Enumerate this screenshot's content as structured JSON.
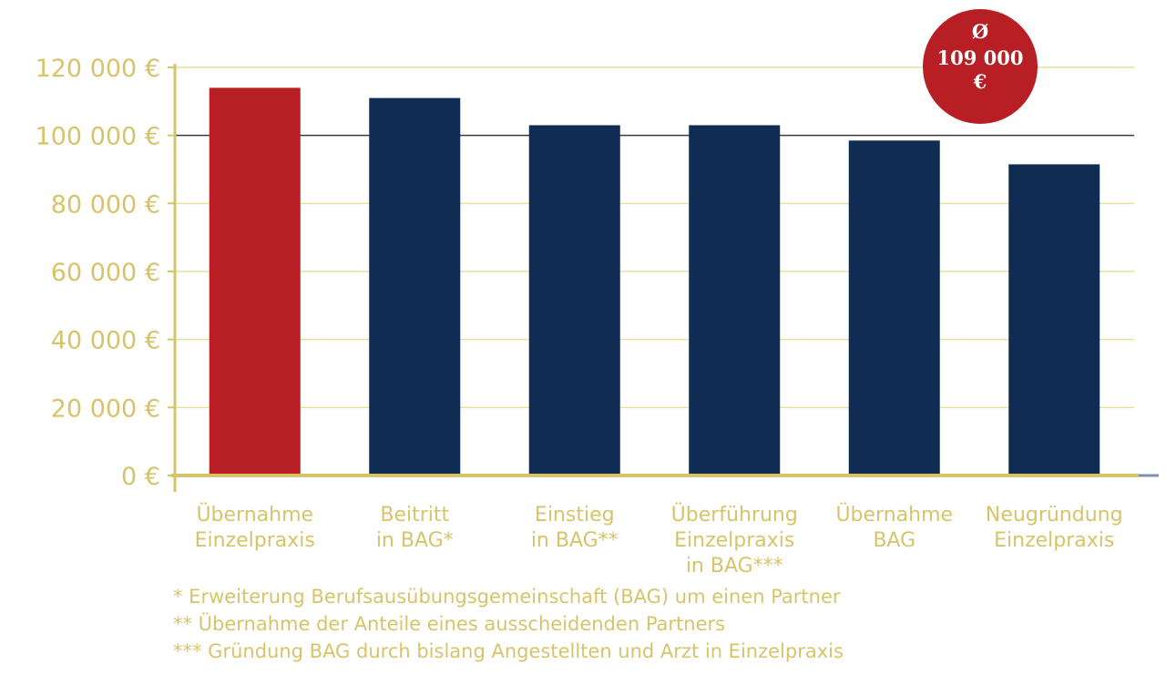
{
  "chart_data": {
    "type": "bar",
    "categories": [
      [
        "Übernahme",
        "Einzelpraxis"
      ],
      [
        "Beitritt",
        "in BAG*"
      ],
      [
        "Einstieg",
        "in BAG**"
      ],
      [
        "Überführung",
        "Einzelpraxis",
        "in BAG***"
      ],
      [
        "Übernahme",
        "BAG"
      ],
      [
        "Neugründung",
        "Einzelpraxis"
      ]
    ],
    "values": [
      114000,
      111000,
      103000,
      103000,
      98500,
      91500
    ],
    "bar_colors": [
      "#b71f25",
      "#102c52",
      "#102c52",
      "#102c52",
      "#102c52",
      "#102c52"
    ],
    "ylim": [
      0,
      120000
    ],
    "yticks": [
      0,
      20000,
      40000,
      60000,
      80000,
      100000,
      120000
    ],
    "ytick_labels": [
      "0 €",
      "20 000 €",
      "40 000 €",
      "60 000 €",
      "80 000 €",
      "100 000 €",
      "120 000 €"
    ],
    "grid": true,
    "average": {
      "symbol": "Ø",
      "value": "109 000",
      "unit": "€"
    },
    "footnotes": [
      "* Erweiterung Berufsausübungsgemeinschaft (BAG) um einen Partner",
      "** Übernahme der Anteile eines ausscheidenden Partners",
      "*** Gründung BAG durch bislang Angestellten und Arzt in Einzelpraxis"
    ],
    "colors": {
      "text": "#d7c46a",
      "grid": "#e9df9e",
      "grid_major": "#3a3a3a",
      "axis": "#d7c46a",
      "avg_circle": "#b71f25"
    }
  }
}
